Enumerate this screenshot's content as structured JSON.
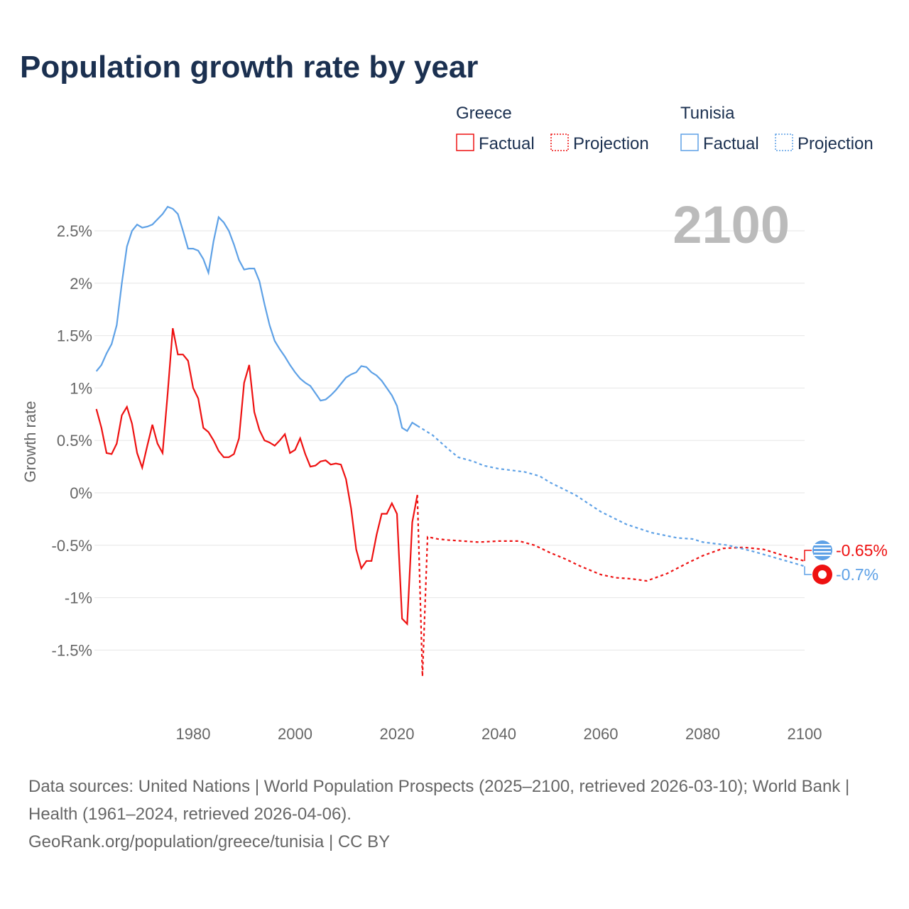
{
  "title": "Population growth rate by year",
  "year_label": "2100",
  "sources_line1": "Data sources: United Nations | World Population Prospects (2025–2100, retrieved 2026-03-10); World Bank | Health (1961–2024, retrieved 2026-04-06).",
  "sources_line2": "GeoRank.org/population/greece/tunisia | CC BY",
  "chart_data": {
    "type": "line",
    "title": "Population growth rate by year",
    "ylabel": "Growth rate",
    "xlabel": "",
    "xlim": [
      1961,
      2100
    ],
    "ylim": [
      -1.9,
      2.95
    ],
    "xticks": [
      1980,
      2000,
      2020,
      2040,
      2060,
      2080,
      2100
    ],
    "yticks": [
      {
        "v": 2.5,
        "l": "2.5%"
      },
      {
        "v": 2,
        "l": "2%"
      },
      {
        "v": 1.5,
        "l": "1.5%"
      },
      {
        "v": 1,
        "l": "1%"
      },
      {
        "v": 0.5,
        "l": "0.5%"
      },
      {
        "v": 0,
        "l": "0%"
      },
      {
        "v": -0.5,
        "l": "-0.5%"
      },
      {
        "v": -1,
        "l": "-1%"
      },
      {
        "v": -1.5,
        "l": "-1.5%"
      }
    ],
    "legend": {
      "groups": [
        {
          "name": "Greece",
          "factual": "Factual",
          "projection": "Projection"
        },
        {
          "name": "Tunisia",
          "factual": "Factual",
          "projection": "Projection"
        }
      ],
      "placement": "top-right"
    },
    "series": [
      {
        "name": "Greece",
        "color": "#ee1111",
        "factual": {
          "x": [
            1961,
            1962,
            1963,
            1964,
            1965,
            1966,
            1967,
            1968,
            1969,
            1970,
            1971,
            1972,
            1973,
            1974,
            1975,
            1976,
            1977,
            1978,
            1979,
            1980,
            1981,
            1982,
            1983,
            1984,
            1985,
            1986,
            1987,
            1988,
            1989,
            1990,
            1991,
            1992,
            1993,
            1994,
            1995,
            1996,
            1997,
            1998,
            1999,
            2000,
            2001,
            2002,
            2003,
            2004,
            2005,
            2006,
            2007,
            2008,
            2009,
            2010,
            2011,
            2012,
            2013,
            2014,
            2015,
            2016,
            2017,
            2018,
            2019,
            2020,
            2021,
            2022,
            2023,
            2024
          ],
          "y": [
            0.8,
            0.62,
            0.38,
            0.37,
            0.47,
            0.74,
            0.82,
            0.66,
            0.38,
            0.24,
            0.45,
            0.65,
            0.47,
            0.38,
            0.95,
            1.57,
            1.32,
            1.32,
            1.26,
            1.0,
            0.9,
            0.62,
            0.58,
            0.5,
            0.4,
            0.34,
            0.34,
            0.37,
            0.52,
            1.05,
            1.22,
            0.77,
            0.6,
            0.5,
            0.48,
            0.45,
            0.5,
            0.56,
            0.38,
            0.41,
            0.52,
            0.37,
            0.25,
            0.26,
            0.3,
            0.31,
            0.27,
            0.28,
            0.27,
            0.13,
            -0.15,
            -0.54,
            -0.72,
            -0.65,
            -0.65,
            -0.4,
            -0.2,
            -0.2,
            -0.1,
            -0.2,
            -1.2,
            -1.25,
            -0.28,
            -0.02
          ]
        },
        "projection": {
          "x": [
            2024,
            2025,
            2026,
            2028,
            2030,
            2033,
            2036,
            2040,
            2044,
            2047,
            2050,
            2053,
            2056,
            2060,
            2063,
            2066,
            2069,
            2073,
            2077,
            2080,
            2084,
            2088,
            2092,
            2096,
            2100
          ],
          "y": [
            -0.02,
            -1.75,
            -0.42,
            -0.44,
            -0.45,
            -0.46,
            -0.47,
            -0.46,
            -0.46,
            -0.5,
            -0.57,
            -0.63,
            -0.7,
            -0.78,
            -0.81,
            -0.82,
            -0.84,
            -0.77,
            -0.67,
            -0.6,
            -0.53,
            -0.52,
            -0.54,
            -0.6,
            -0.65
          ]
        },
        "end_label": "-0.65%"
      },
      {
        "name": "Tunisia",
        "color": "#5ea1e6",
        "factual": {
          "x": [
            1961,
            1962,
            1963,
            1964,
            1965,
            1966,
            1967,
            1968,
            1969,
            1970,
            1971,
            1972,
            1973,
            1974,
            1975,
            1976,
            1977,
            1978,
            1979,
            1980,
            1981,
            1982,
            1983,
            1984,
            1985,
            1986,
            1987,
            1988,
            1989,
            1990,
            1991,
            1992,
            1993,
            1994,
            1995,
            1996,
            1997,
            1998,
            1999,
            2000,
            2001,
            2002,
            2003,
            2004,
            2005,
            2006,
            2007,
            2008,
            2009,
            2010,
            2011,
            2012,
            2013,
            2014,
            2015,
            2016,
            2017,
            2018,
            2019,
            2020,
            2021,
            2022,
            2023,
            2024
          ],
          "y": [
            1.16,
            1.22,
            1.33,
            1.42,
            1.6,
            2.0,
            2.35,
            2.5,
            2.56,
            2.53,
            2.54,
            2.56,
            2.61,
            2.66,
            2.73,
            2.71,
            2.66,
            2.5,
            2.33,
            2.33,
            2.31,
            2.23,
            2.1,
            2.4,
            2.63,
            2.58,
            2.5,
            2.37,
            2.22,
            2.13,
            2.14,
            2.14,
            2.02,
            1.8,
            1.6,
            1.45,
            1.37,
            1.3,
            1.22,
            1.15,
            1.09,
            1.05,
            1.02,
            0.95,
            0.88,
            0.89,
            0.93,
            0.98,
            1.04,
            1.1,
            1.13,
            1.15,
            1.21,
            1.2,
            1.15,
            1.12,
            1.07,
            1.0,
            0.93,
            0.83,
            0.62,
            0.59,
            0.67,
            0.64
          ]
        },
        "projection": {
          "x": [
            2024,
            2025,
            2027,
            2030,
            2032,
            2035,
            2037,
            2040,
            2045,
            2048,
            2050,
            2055,
            2060,
            2065,
            2070,
            2075,
            2078,
            2080,
            2085,
            2090,
            2095,
            2100
          ],
          "y": [
            0.64,
            0.61,
            0.55,
            0.42,
            0.34,
            0.3,
            0.26,
            0.23,
            0.2,
            0.16,
            0.1,
            -0.02,
            -0.18,
            -0.3,
            -0.38,
            -0.43,
            -0.44,
            -0.47,
            -0.5,
            -0.56,
            -0.63,
            -0.7
          ]
        },
        "end_label": "-0.7%"
      }
    ]
  }
}
